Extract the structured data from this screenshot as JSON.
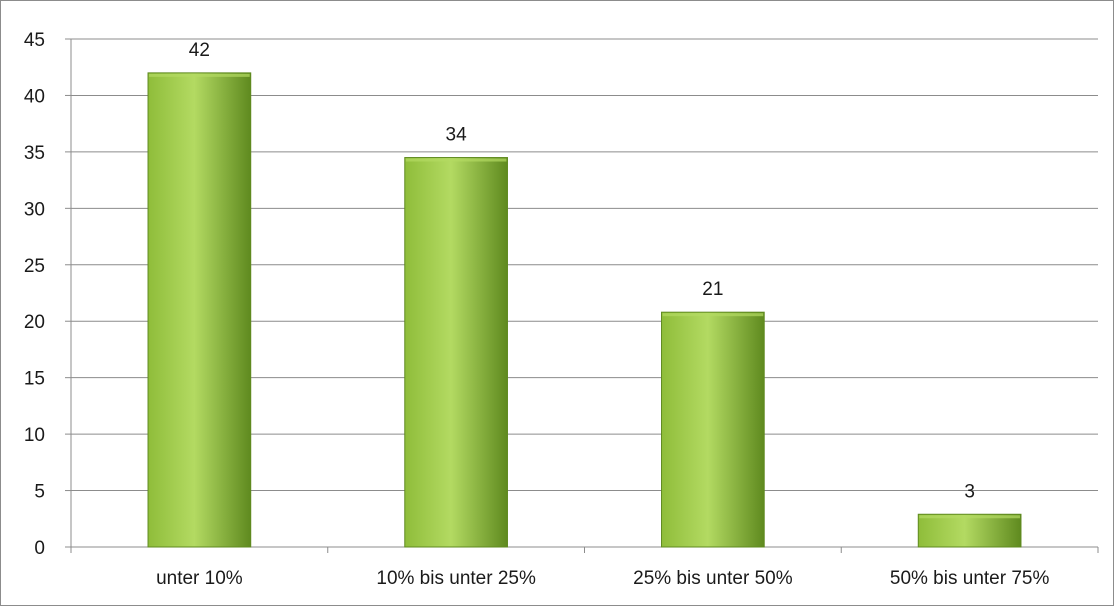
{
  "chart_data": {
    "type": "bar",
    "categories": [
      "unter 10%",
      "10% bis unter 25%",
      "25% bis unter 50%",
      "50% bis unter 75%"
    ],
    "values": [
      42,
      34.5,
      20.8,
      2.9
    ],
    "data_labels": [
      "42",
      "34",
      "21",
      "3"
    ],
    "ylim": [
      0,
      45
    ],
    "yticks": [
      0,
      5,
      10,
      15,
      20,
      25,
      30,
      35,
      40,
      45
    ],
    "grid": true,
    "legend": "none",
    "title": "",
    "xlabel": "",
    "ylabel": "",
    "colors": {
      "bar_light": "#b3da62",
      "bar_mid": "#8fbd3a",
      "bar_dark": "#5f8a1f",
      "grid": "#8c8c8c",
      "axis": "#8c8c8c"
    }
  }
}
